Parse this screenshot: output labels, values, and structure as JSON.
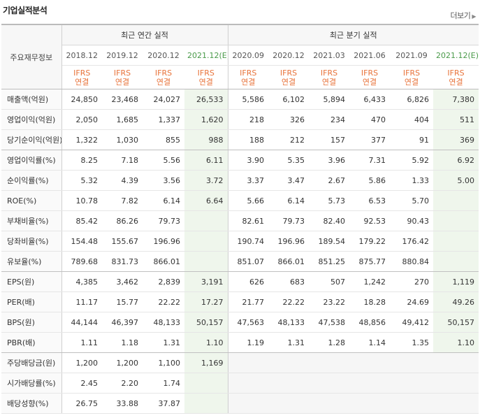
{
  "section_title": "기업실적분석",
  "more_link": "더보기",
  "corner_label": "주요재무정보",
  "annual_header": "최근 연간 실적",
  "quarter_header": "최근 분기 실적",
  "periods": [
    "2018.12",
    "2019.12",
    "2020.12",
    "2021.12(E)",
    "2020.09",
    "2020.12",
    "2021.03",
    "2021.06",
    "2021.09",
    "2021.12(E)"
  ],
  "ifrs_top": "IFRS",
  "ifrs_bottom": "연결",
  "rows": [
    {
      "label": "매출액(억원)",
      "values": [
        "24,850",
        "23,468",
        "24,027",
        "26,533",
        "5,586",
        "6,102",
        "5,894",
        "6,433",
        "6,826",
        "7,380"
      ]
    },
    {
      "label": "영업이익(억원)",
      "values": [
        "2,050",
        "1,685",
        "1,337",
        "1,620",
        "218",
        "326",
        "234",
        "470",
        "404",
        "511"
      ]
    },
    {
      "label": "당기순이익(억원)",
      "values": [
        "1,322",
        "1,030",
        "855",
        "988",
        "188",
        "212",
        "157",
        "377",
        "91",
        "369"
      ]
    },
    {
      "label": "영업이익률(%)",
      "values": [
        "8.25",
        "7.18",
        "5.56",
        "6.11",
        "3.90",
        "5.35",
        "3.96",
        "7.31",
        "5.92",
        "6.92"
      ]
    },
    {
      "label": "순이익률(%)",
      "values": [
        "5.32",
        "4.39",
        "3.56",
        "3.72",
        "3.37",
        "3.47",
        "2.67",
        "5.86",
        "1.33",
        "5.00"
      ]
    },
    {
      "label": "ROE(%)",
      "values": [
        "10.78",
        "7.82",
        "6.14",
        "6.64",
        "5.66",
        "6.14",
        "5.73",
        "6.53",
        "5.70",
        ""
      ]
    },
    {
      "label": "부채비율(%)",
      "values": [
        "85.42",
        "86.26",
        "79.73",
        "",
        "82.61",
        "79.73",
        "82.40",
        "92.53",
        "90.43",
        ""
      ]
    },
    {
      "label": "당좌비율(%)",
      "values": [
        "154.48",
        "155.67",
        "196.96",
        "",
        "190.74",
        "196.96",
        "189.54",
        "179.22",
        "176.42",
        ""
      ]
    },
    {
      "label": "유보율(%)",
      "values": [
        "789.68",
        "831.73",
        "866.01",
        "",
        "851.07",
        "866.01",
        "851.25",
        "875.77",
        "880.84",
        ""
      ]
    },
    {
      "label": "EPS(원)",
      "values": [
        "4,385",
        "3,462",
        "2,839",
        "3,191",
        "626",
        "683",
        "507",
        "1,242",
        "270",
        "1,119"
      ]
    },
    {
      "label": "PER(배)",
      "values": [
        "11.17",
        "15.77",
        "22.22",
        "17.27",
        "21.77",
        "22.22",
        "23.22",
        "18.28",
        "24.69",
        "49.26"
      ]
    },
    {
      "label": "BPS(원)",
      "values": [
        "44,144",
        "46,397",
        "48,133",
        "50,157",
        "47,563",
        "48,133",
        "47,538",
        "48,856",
        "49,412",
        "50,157"
      ]
    },
    {
      "label": "PBR(배)",
      "values": [
        "1.11",
        "1.18",
        "1.31",
        "1.10",
        "1.19",
        "1.31",
        "1.28",
        "1.14",
        "1.35",
        "1.10"
      ]
    },
    {
      "label": "주당배당금(원)",
      "values": [
        "1,200",
        "1,200",
        "1,100",
        "1,169",
        "",
        "",
        "",
        "",
        "",
        ""
      ]
    },
    {
      "label": "시가배당률(%)",
      "values": [
        "2.45",
        "2.20",
        "1.74",
        "",
        "",
        "",
        "",
        "",
        "",
        ""
      ]
    },
    {
      "label": "배당성향(%)",
      "values": [
        "26.75",
        "33.88",
        "37.87",
        "",
        "",
        "",
        "",
        "",
        "",
        ""
      ]
    }
  ],
  "colors": {
    "ifrs": "#e8733a",
    "estimate_bg": "#eff6ec",
    "estimate_text": "#4a9a4a"
  }
}
